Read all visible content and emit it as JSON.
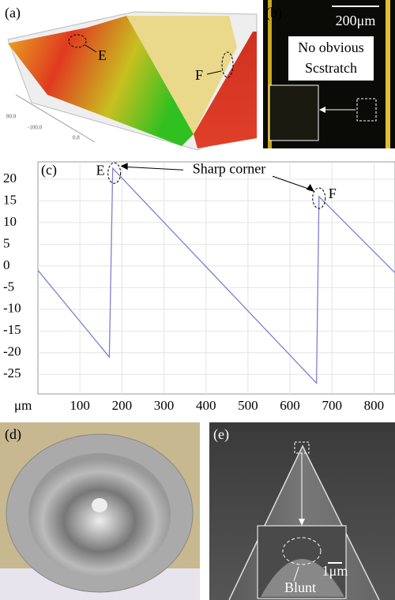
{
  "panels": {
    "a": {
      "label": "(a)",
      "marker_e": "E",
      "marker_f": "F",
      "axis_labels": [
        "80.0",
        "-100.0",
        "0.8"
      ]
    },
    "b": {
      "label": "(b)",
      "scale_bar": "200μm",
      "note_line1": "No obvious",
      "note_line2": "Scstratch"
    },
    "c": {
      "label": "(c)"
    },
    "d": {
      "label": "(d)"
    },
    "e": {
      "label": "(e)",
      "scale_bar": "1μm",
      "note": "Blunt"
    }
  },
  "chart_data": {
    "type": "line",
    "x_label": "μm",
    "x": [
      0,
      170,
      178,
      663,
      669,
      849
    ],
    "values": [
      -1,
      -21,
      22.5,
      -27,
      16,
      -1.5
    ],
    "color": "#7f7fd0",
    "xlim": [
      0,
      850
    ],
    "ylim": [
      -29.5,
      24
    ],
    "xticks": [
      100,
      200,
      300,
      400,
      500,
      600,
      700,
      800
    ],
    "yticks": [
      20,
      15,
      10,
      5,
      0,
      -5,
      -10,
      -15,
      -20,
      -25
    ],
    "grid": true,
    "annotations": {
      "e": "E",
      "f": "F",
      "corner": "Sharp corner"
    }
  }
}
